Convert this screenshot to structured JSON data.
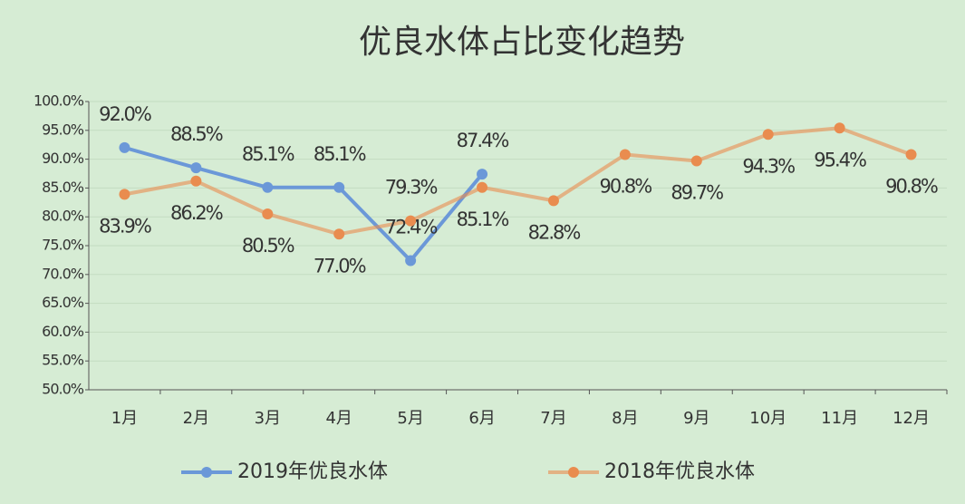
{
  "chart_data": {
    "type": "line",
    "title": "优良水体占比变化趋势",
    "categories": [
      "1月",
      "2月",
      "3月",
      "4月",
      "5月",
      "6月",
      "7月",
      "8月",
      "9月",
      "10月",
      "11月",
      "12月"
    ],
    "series": [
      {
        "name": "2019年优良水体",
        "color": "#6b98d8",
        "values": [
          92.0,
          88.5,
          85.1,
          85.1,
          72.4,
          87.4,
          null,
          null,
          null,
          null,
          null,
          null
        ],
        "value_labels": [
          "92.0%",
          "88.5%",
          "85.1%",
          "85.1%",
          "72.4%",
          "87.4%",
          null,
          null,
          null,
          null,
          null,
          null
        ]
      },
      {
        "name": "2018年优良水体",
        "color": "#e98c4f",
        "values": [
          83.9,
          86.2,
          80.5,
          77.0,
          79.3,
          85.1,
          82.8,
          90.8,
          89.7,
          94.3,
          95.4,
          90.8
        ],
        "value_labels": [
          "83.9%",
          "86.2%",
          "80.5%",
          "77.0%",
          "79.3%",
          "85.1%",
          "82.8%",
          "90.8%",
          "89.7%",
          "94.3%",
          "95.4%",
          "90.8%"
        ]
      }
    ],
    "ylim": [
      50,
      100
    ],
    "yticks": [
      {
        "value": 50,
        "label": "50.0%"
      },
      {
        "value": 55,
        "label": "55.0%"
      },
      {
        "value": 60,
        "label": "60.0%"
      },
      {
        "value": 65,
        "label": "65.0%"
      },
      {
        "value": 70,
        "label": "70.0%"
      },
      {
        "value": 75,
        "label": "75.0%"
      },
      {
        "value": 80,
        "label": "80.0%"
      },
      {
        "value": 85,
        "label": "85.0%"
      },
      {
        "value": 90,
        "label": "90.0%"
      },
      {
        "value": 95,
        "label": "95.0%"
      },
      {
        "value": 100,
        "label": "100.0%"
      }
    ],
    "grid": true,
    "legend": "bottom"
  }
}
